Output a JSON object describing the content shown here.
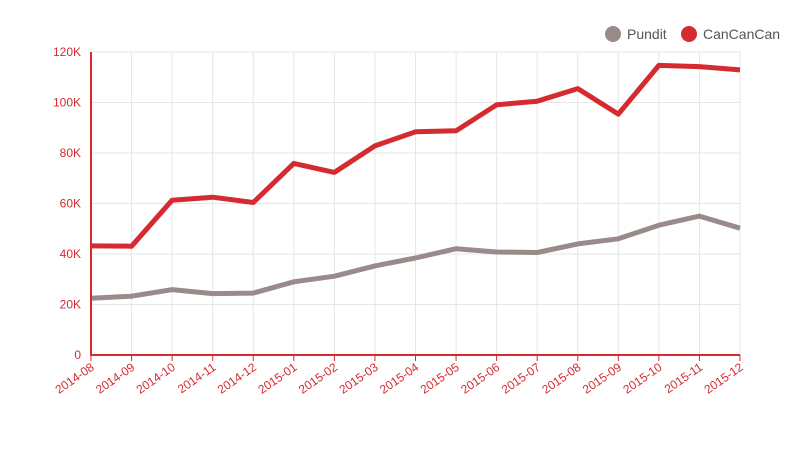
{
  "chart_data": {
    "type": "line",
    "categories": [
      "2014-08",
      "2014-09",
      "2014-10",
      "2014-11",
      "2014-12",
      "2015-01",
      "2015-02",
      "2015-03",
      "2015-04",
      "2015-05",
      "2015-06",
      "2015-07",
      "2015-08",
      "2015-09",
      "2015-10",
      "2015-11",
      "2015-12"
    ],
    "series": [
      {
        "name": "Pundit",
        "color": "#9b8a8a",
        "values": [
          22500,
          23300,
          25900,
          24300,
          24500,
          29000,
          31200,
          35300,
          38400,
          42100,
          40800,
          40600,
          44000,
          46000,
          51400,
          55000,
          50200
        ]
      },
      {
        "name": "CanCanCan",
        "color": "#d62a31",
        "values": [
          43200,
          43100,
          61300,
          62500,
          60400,
          75900,
          72300,
          82800,
          88400,
          88800,
          99100,
          100500,
          105500,
          95400,
          114700,
          114200,
          112900
        ]
      }
    ],
    "y_ticks": [
      0,
      20000,
      40000,
      60000,
      80000,
      100000,
      120000
    ],
    "y_tick_labels": [
      "0",
      "20K",
      "40K",
      "60K",
      "80K",
      "100K",
      "120K"
    ],
    "ylim": [
      0,
      120000
    ],
    "axis_color": "#d62a31",
    "grid_color": "#e6e6e6",
    "grid": true,
    "legend_position": "top-right",
    "title": "",
    "xlabel": "",
    "ylabel": ""
  }
}
